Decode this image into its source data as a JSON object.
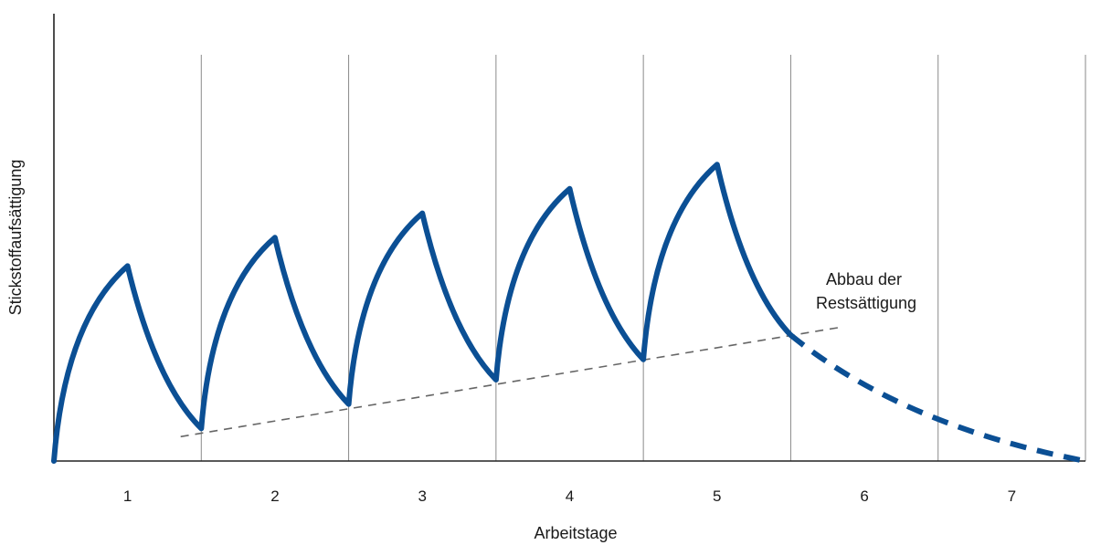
{
  "chart_data": {
    "type": "line",
    "xlabel": "Arbeitstage",
    "ylabel": "Stickstoffaufsättigung",
    "categories": [
      "1",
      "2",
      "3",
      "4",
      "5",
      "6",
      "7"
    ],
    "xlim": [
      0,
      7
    ],
    "ylim": [
      0,
      100
    ],
    "grid": "vertical lines between days",
    "series": [
      {
        "style": "solid",
        "color": "#0b4f94",
        "points": [
          {
            "x": 0.0,
            "y": 0
          },
          {
            "x": 0.5,
            "y": 48
          },
          {
            "x": 1.0,
            "y": 8
          },
          {
            "x": 1.5,
            "y": 55
          },
          {
            "x": 2.0,
            "y": 14
          },
          {
            "x": 2.5,
            "y": 61
          },
          {
            "x": 3.0,
            "y": 20
          },
          {
            "x": 3.5,
            "y": 67
          },
          {
            "x": 4.0,
            "y": 25
          },
          {
            "x": 4.5,
            "y": 73
          },
          {
            "x": 5.0,
            "y": 31
          }
        ]
      },
      {
        "style": "dashed",
        "color": "#0b4f94",
        "points": [
          {
            "x": 5.0,
            "y": 31
          },
          {
            "x": 7.0,
            "y": 0
          }
        ]
      }
    ],
    "trend_line": {
      "style": "dashed",
      "color": "#666666",
      "from": {
        "x": 0.86,
        "y": 6
      },
      "to": {
        "x": 5.35,
        "y": 33
      }
    },
    "annotation": {
      "lines": [
        "Abbau der",
        "Restsättigung"
      ]
    }
  }
}
